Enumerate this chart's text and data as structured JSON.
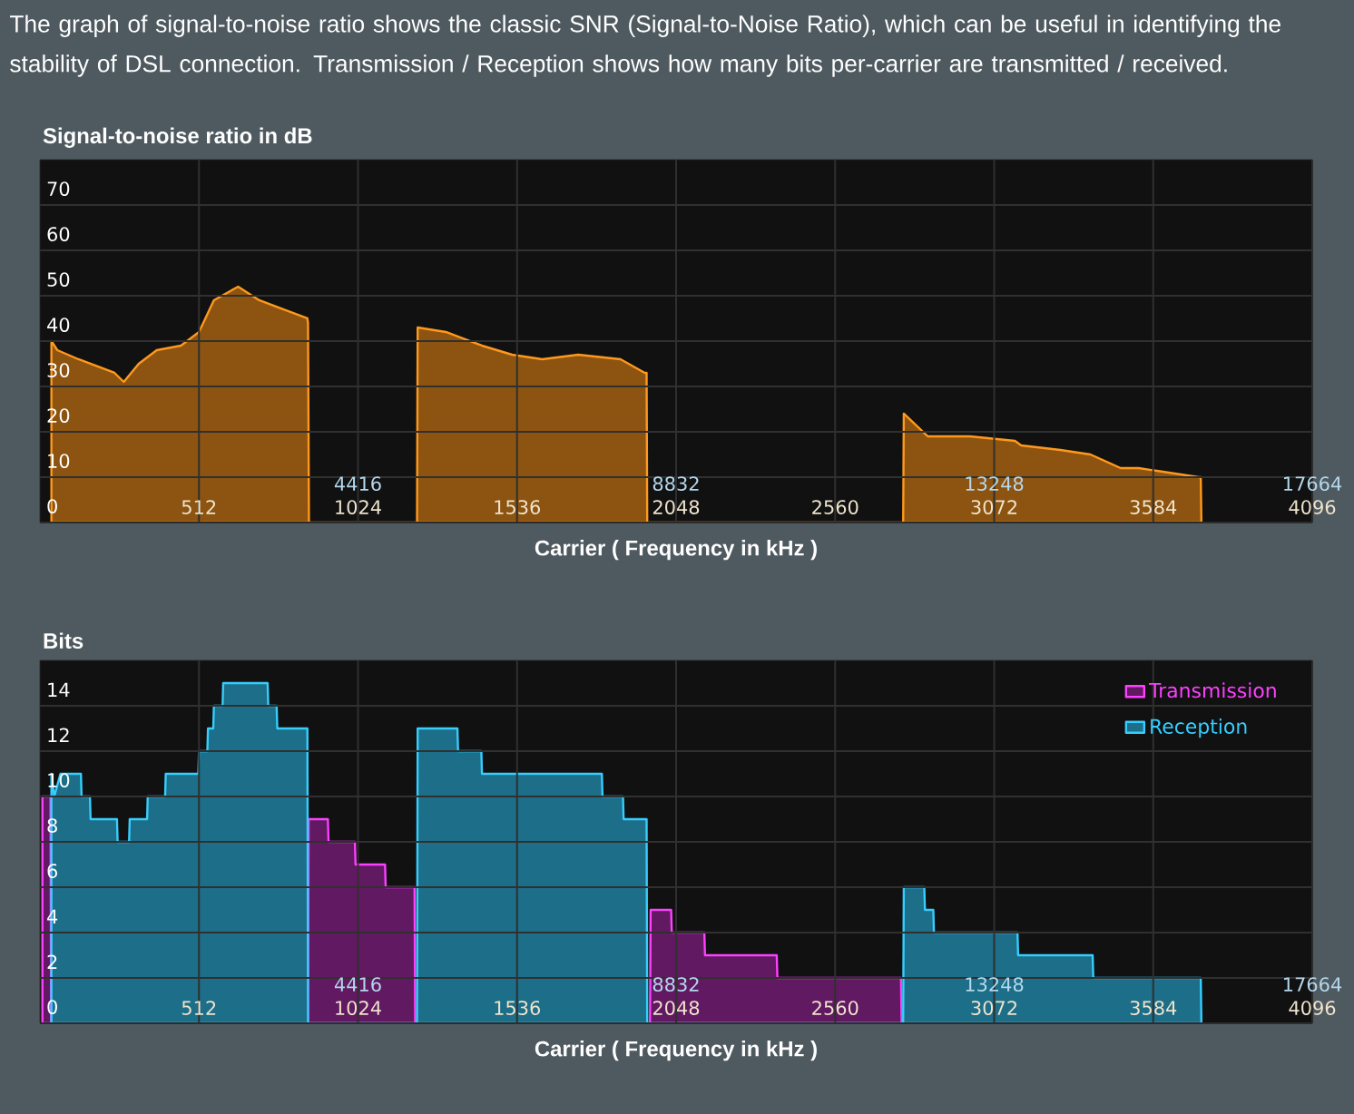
{
  "chart_data": [
    {
      "type": "area",
      "title": "Signal-to-noise ratio in dB",
      "xlabel": "Carrier ( Frequency in kHz )",
      "annotations": [
        "The graph of signal-to-noise ratio shows the classic SNR (Signal-to-Noise Ratio), which can be useful in identifying the stability of DSL connection. Transmission / Reception shows how many bits per-carrier are transmitted / received."
      ],
      "x": [
        37,
        56,
        124,
        240,
        270,
        318,
        376,
        454,
        512,
        560,
        638,
        706,
        783,
        861,
        863,
        866,
        1214,
        1216,
        1307,
        1423,
        1520,
        1617,
        1733,
        1869,
        1947,
        1953,
        1955,
        2779,
        2781,
        2858,
        2994,
        3139,
        3159,
        3285,
        3382,
        3479,
        3537,
        3731,
        3737,
        3739
      ],
      "values": [
        40,
        38,
        36,
        33,
        31,
        35,
        38,
        39,
        42,
        49,
        52,
        49,
        47,
        45,
        44,
        0,
        0,
        43,
        42,
        39,
        37,
        36,
        37,
        36,
        33,
        33,
        0,
        0,
        24,
        19,
        19,
        18,
        17,
        16,
        15,
        12,
        12,
        10,
        10,
        0
      ],
      "color": "#8c5410",
      "xlim": [
        0,
        4096
      ],
      "xticks": [
        512,
        1024,
        1536,
        2048,
        2560,
        3072,
        3584,
        4096
      ],
      "x2lim": [
        0,
        17664
      ],
      "x2ticks": [
        4416,
        8832,
        13248,
        17664
      ],
      "ylim": [
        0,
        80
      ],
      "yticks": [
        0,
        10,
        20,
        30,
        40,
        50,
        60,
        70
      ],
      "grid": true
    },
    {
      "type": "area",
      "title": "Bits",
      "xlabel": "Carrier ( Frequency in kHz )",
      "series": [
        {
          "name": "Transmission",
          "color": "#611962",
          "x": [
            8,
            34,
            36,
            863,
            865,
            927,
            929,
            1014,
            1016,
            1111,
            1113,
            1206,
            1208,
            1964,
            1966,
            2032,
            2034,
            2139,
            2141,
            2372,
            2374,
            2772,
            2774
          ],
          "values": [
            10,
            10,
            0,
            0,
            9,
            9,
            8,
            8,
            7,
            7,
            6,
            6,
            0,
            0,
            5,
            5,
            4,
            4,
            3,
            3,
            2,
            2,
            0
          ]
        },
        {
          "name": "Reception",
          "color": "#1d6e88",
          "x": [
            37,
            46,
            66,
            132,
            134,
            161,
            163,
            248,
            250,
            287,
            289,
            345,
            347,
            403,
            405,
            510,
            512,
            539,
            541,
            558,
            560,
            588,
            590,
            733,
            735,
            762,
            764,
            861,
            863,
            1214,
            1216,
            1344,
            1346,
            1421,
            1423,
            1809,
            1811,
            1877,
            1879,
            1953,
            1955,
            2779,
            2781,
            2847,
            2849,
            2876,
            2878,
            3147,
            3149,
            3389,
            3391,
            3737,
            3739
          ],
          "values": [
            11,
            10,
            11,
            11,
            10,
            10,
            9,
            9,
            8,
            8,
            9,
            9,
            10,
            10,
            11,
            11,
            12,
            12,
            13,
            13,
            14,
            14,
            15,
            15,
            14,
            14,
            13,
            13,
            0,
            0,
            13,
            13,
            12,
            12,
            11,
            11,
            10,
            10,
            9,
            9,
            0,
            0,
            6,
            6,
            5,
            5,
            4,
            4,
            3,
            3,
            2,
            2,
            0
          ]
        }
      ],
      "xlim": [
        0,
        4096
      ],
      "xticks": [
        512,
        1024,
        1536,
        2048,
        2560,
        3072,
        3584,
        4096
      ],
      "x2lim": [
        0,
        17664
      ],
      "x2ticks": [
        4416,
        8832,
        13248,
        17664
      ],
      "ylim": [
        0,
        16
      ],
      "yticks": [
        0,
        2,
        4,
        6,
        8,
        10,
        12,
        14
      ],
      "grid": true,
      "legend": "top right"
    }
  ]
}
